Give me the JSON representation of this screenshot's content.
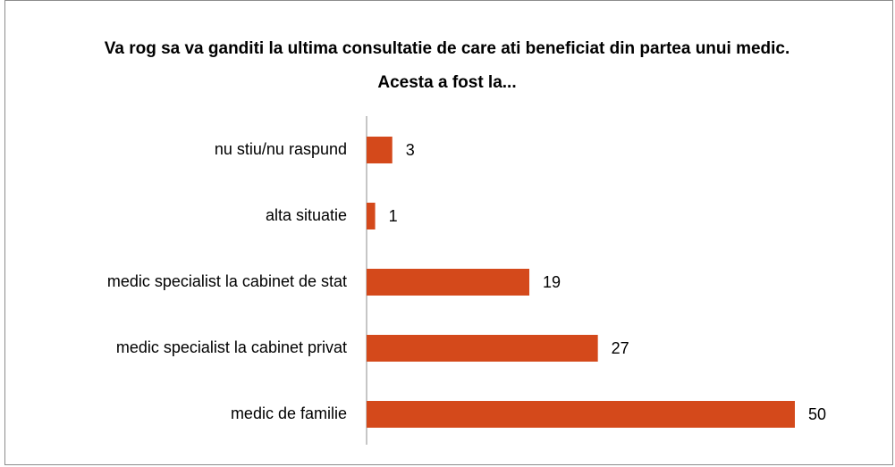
{
  "chart_data": {
    "type": "bar",
    "orientation": "horizontal",
    "title": "Va rog sa va ganditi la ultima consultatie de care ati beneficiat din partea unui medic. Acesta a fost la...",
    "categories": [
      "nu stiu/nu raspund",
      "alta situatie",
      "medic specialist la cabinet de stat",
      "medic specialist la cabinet privat",
      "medic de familie"
    ],
    "values": [
      3,
      1,
      19,
      27,
      50
    ],
    "color": "#d4491b"
  }
}
